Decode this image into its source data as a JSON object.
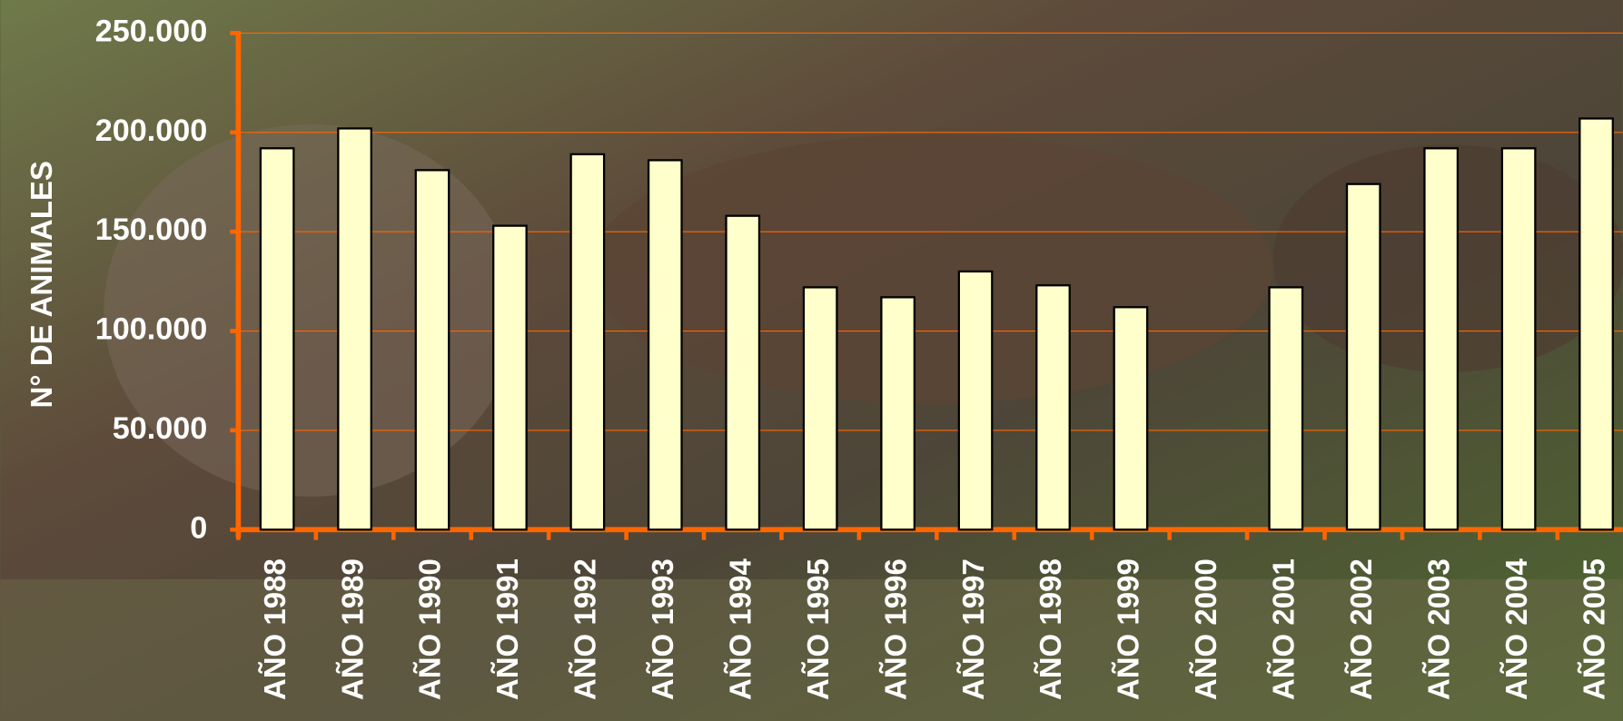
{
  "chart_data": {
    "type": "bar",
    "y_label": "N° DE ANIMALES",
    "categories": [
      "AÑO 1988",
      "AÑO 1989",
      "AÑO 1990",
      "AÑO 1991",
      "AÑO 1992",
      "AÑO 1993",
      "AÑO 1994",
      "AÑO 1995",
      "AÑO 1996",
      "AÑO 1997",
      "AÑO 1998",
      "AÑO 1999",
      "AÑO 2000",
      "AÑO 2001",
      "AÑO 2002",
      "AÑO 2003",
      "AÑO 2004",
      "AÑO 2005"
    ],
    "values": [
      192000,
      202000,
      181000,
      153000,
      189000,
      186000,
      158000,
      122000,
      117000,
      130000,
      123000,
      112000,
      null,
      122000,
      174000,
      192000,
      192000,
      207000
    ],
    "color": "#ffffcc",
    "axis_color": "#ff6600",
    "ylim": [
      0,
      250000
    ],
    "yticks": [
      0,
      {
        "value": 50000,
        "label": "50.000"
      },
      {
        "value": 100000,
        "label": "100.000"
      },
      {
        "value": 150000,
        "label": "150.000"
      },
      {
        "value": 200000,
        "label": "200.000"
      },
      {
        "value": 250000,
        "label": "250.000"
      }
    ],
    "grid": true
  }
}
